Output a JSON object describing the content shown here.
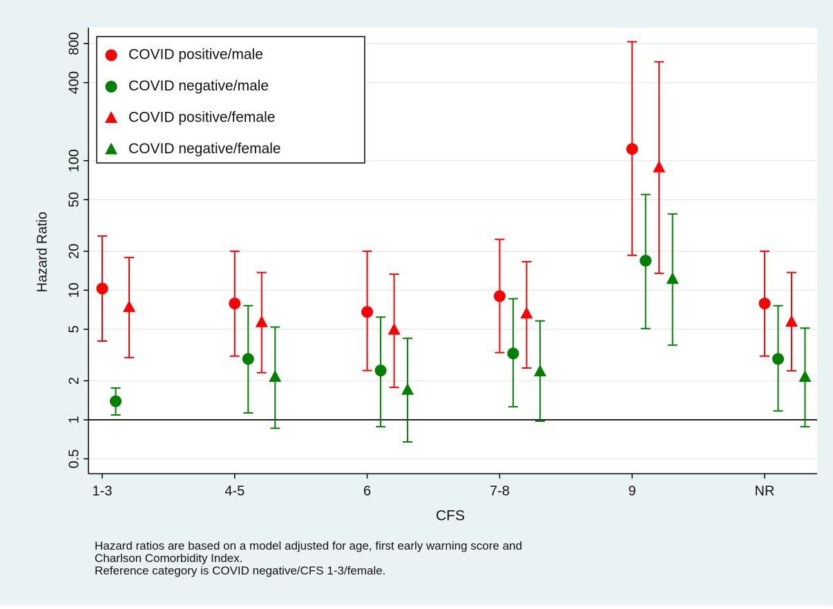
{
  "chart_data": {
    "type": "errorbar",
    "xlabel": "CFS",
    "ylabel": "Hazard Ratio",
    "categories": [
      "1-3",
      "4-5",
      "6",
      "7-8",
      "9",
      "NR"
    ],
    "log_y": true,
    "ylim": [
      0.384,
      1000
    ],
    "yticks": [
      0.5,
      1,
      2,
      5,
      10,
      20,
      50,
      100,
      400,
      800
    ],
    "grid": true,
    "reference_line": 1,
    "legend": "upper left",
    "series": [
      {
        "name": "COVID positive/male",
        "color": "#ff0000",
        "marker": "circle",
        "values": [
          10.3,
          7.9,
          6.8,
          9.0,
          123,
          7.9
        ],
        "lower": [
          4.05,
          3.1,
          2.4,
          3.3,
          18.6,
          3.1
        ],
        "upper": [
          26.2,
          20,
          20,
          24.7,
          827,
          20
        ]
      },
      {
        "name": "COVID negative/male",
        "color": "#008000",
        "marker": "circle",
        "values": [
          1.39,
          2.95,
          2.4,
          3.25,
          16.9,
          2.95
        ],
        "lower": [
          1.09,
          1.13,
          0.885,
          1.26,
          5.06,
          1.17
        ],
        "upper": [
          1.76,
          7.6,
          6.2,
          8.6,
          54.8,
          7.6
        ]
      },
      {
        "name": "COVID positive/female",
        "color": "#ff0000",
        "marker": "triangle",
        "values": [
          7.4,
          5.65,
          4.94,
          6.6,
          88.5,
          5.7
        ],
        "lower": [
          3.02,
          2.31,
          1.78,
          2.51,
          13.5,
          2.39
        ],
        "upper": [
          17.9,
          13.7,
          13.3,
          16.6,
          579,
          13.7
        ]
      },
      {
        "name": "COVID negative/female",
        "color": "#008000",
        "marker": "triangle",
        "values": [
          null,
          2.14,
          1.7,
          2.36,
          12.2,
          2.14
        ],
        "lower": [
          null,
          0.86,
          0.675,
          0.976,
          3.77,
          0.885
        ],
        "upper": [
          null,
          5.2,
          4.26,
          5.8,
          38.8,
          5.1
        ]
      }
    ],
    "notes": [
      "Hazard ratios are based on a model adjusted for age, first early warning score and",
      "Charlson Comorbidity Index.",
      "Reference category is COVID negative/CFS 1-3/female."
    ]
  }
}
